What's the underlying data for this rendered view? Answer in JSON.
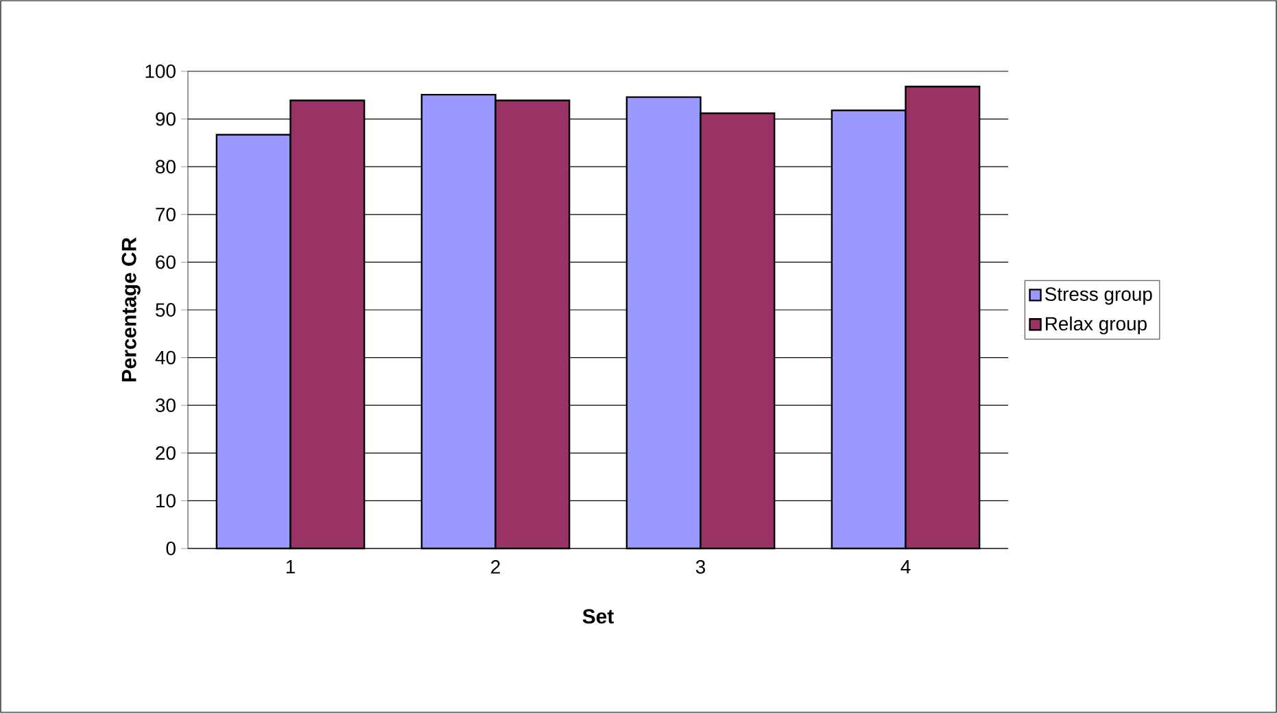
{
  "chart_data": {
    "type": "bar",
    "xlabel": "Set",
    "ylabel": "Percentage CR",
    "categories": [
      "1",
      "2",
      "3",
      "4"
    ],
    "series": [
      {
        "name": "Stress group",
        "color": "#9999ff",
        "values": [
          86.7,
          95.1,
          94.6,
          91.8
        ]
      },
      {
        "name": "Relax group",
        "color": "#993366",
        "values": [
          93.9,
          93.9,
          91.2,
          96.8
        ]
      }
    ],
    "ylim": [
      0,
      100
    ],
    "yticks": [
      0,
      10,
      20,
      30,
      40,
      50,
      60,
      70,
      80,
      90,
      100
    ],
    "grid": "y",
    "legend": "right"
  }
}
